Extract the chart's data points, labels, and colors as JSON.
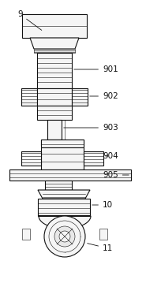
{
  "bg_color": "#ffffff",
  "line_color": "#111111",
  "fill_light": "#f5f5f5",
  "fill_mid": "#e8e8e8",
  "lw_main": 0.8,
  "lw_thin": 0.4,
  "figsize": [
    1.85,
    3.59
  ],
  "dpi": 100
}
